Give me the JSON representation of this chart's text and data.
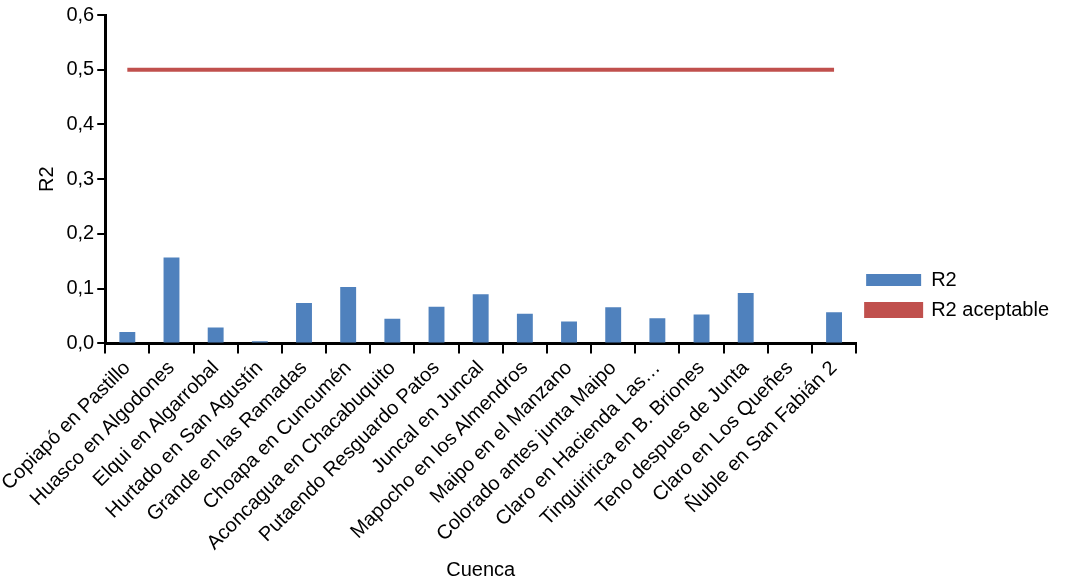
{
  "chart_data": {
    "type": "bar",
    "xlabel": "Cuenca",
    "ylabel": "R2",
    "categories": [
      "Copiapó en Pastillo",
      "Huasco en Algodones",
      "Elqui en Algarrobal",
      "Hurtado en San Agustín",
      "Grande en las Ramadas",
      "Choapa en Cuncumén",
      "Aconcagua en Chacabuquito",
      "Putaendo Resguardo Patos",
      "Juncal en Juncal",
      "Mapocho en los Almendros",
      "Maipo en el Manzano",
      "Colorado antes junta Maipo",
      "Claro en Hacienda Las…",
      "Tinguiririca en B. Briones",
      "Teno despues de Junta",
      "Claro en Los Queñes",
      "Ñuble en San Fabián 2"
    ],
    "series": [
      {
        "name": "R2",
        "color": "#4f81bd",
        "values": [
          0.021,
          0.157,
          0.029,
          0.004,
          0.074,
          0.103,
          0.045,
          0.067,
          0.09,
          0.054,
          0.04,
          0.066,
          0.046,
          0.053,
          0.092,
          0,
          0.057
        ]
      },
      {
        "name": "R2 aceptable",
        "type": "line",
        "color": "#c0504d",
        "marker": "none",
        "values": [
          0.5,
          0.5,
          0.5,
          0.5,
          0.5,
          0.5,
          0.5,
          0.5,
          0.5,
          0.5,
          0.5,
          0.5,
          0.5,
          0.5,
          0.5,
          0.5,
          0.5
        ]
      }
    ],
    "ylim": [
      0,
      0.6
    ],
    "yticks": [
      {
        "value": 0,
        "label": "0,0"
      },
      {
        "value": 0.1,
        "label": "0,1"
      },
      {
        "value": 0.2,
        "label": "0,2"
      },
      {
        "value": 0.3,
        "label": "0,3"
      },
      {
        "value": 0.4,
        "label": "0,4"
      },
      {
        "value": 0.5,
        "label": "0,5"
      },
      {
        "value": 0.6,
        "label": "0,6"
      }
    ],
    "grid": false,
    "legend": "right"
  }
}
